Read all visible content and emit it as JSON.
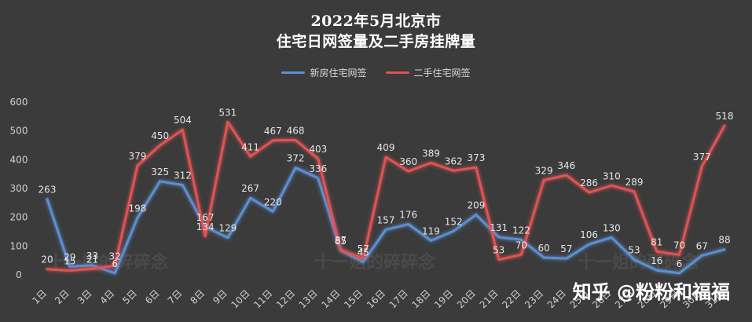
{
  "chart_data": {
    "type": "line",
    "title_line1": "2022年5月北京市",
    "title_line2": "住宅日网签量及二手房挂牌量",
    "xlabel": "",
    "ylabel": "",
    "ylim": [
      0,
      600
    ],
    "yticks": [
      0,
      100,
      200,
      300,
      400,
      500,
      600
    ],
    "grid": false,
    "legend_position": "top",
    "categories": [
      "1日",
      "2日",
      "3日",
      "4日",
      "5日",
      "6日",
      "7日",
      "8日",
      "9日",
      "10日",
      "11日",
      "12日",
      "13日",
      "14日",
      "15日",
      "16日",
      "17日",
      "18日",
      "19日",
      "20日",
      "21日",
      "22日",
      "23日",
      "24日",
      "25日",
      "26日",
      "27日",
      "28日",
      "29日",
      "30日",
      "31日"
    ],
    "series": [
      {
        "name": "新房住宅网签",
        "color": "#5b8fd1",
        "values": [
          263,
          29,
          33,
          6,
          198,
          325,
          312,
          167,
          129,
          267,
          220,
          372,
          336,
          85,
          45,
          157,
          176,
          119,
          152,
          209,
          131,
          122,
          60,
          57,
          106,
          130,
          53,
          16,
          6,
          67,
          88
        ]
      },
      {
        "name": "二手住宅网签",
        "color": "#e05252",
        "values": [
          20,
          15,
          21,
          32,
          379,
          450,
          504,
          134,
          531,
          411,
          467,
          468,
          403,
          87,
          57,
          409,
          360,
          389,
          362,
          373,
          53,
          70,
          329,
          346,
          286,
          310,
          289,
          81,
          70,
          377,
          518
        ]
      }
    ]
  },
  "watermarks": [
    "十一姐的碎碎念",
    "十一姐的碎碎念",
    "十一姐的碎碎念"
  ],
  "brand_mark": "知乎 @粉粉和福福"
}
